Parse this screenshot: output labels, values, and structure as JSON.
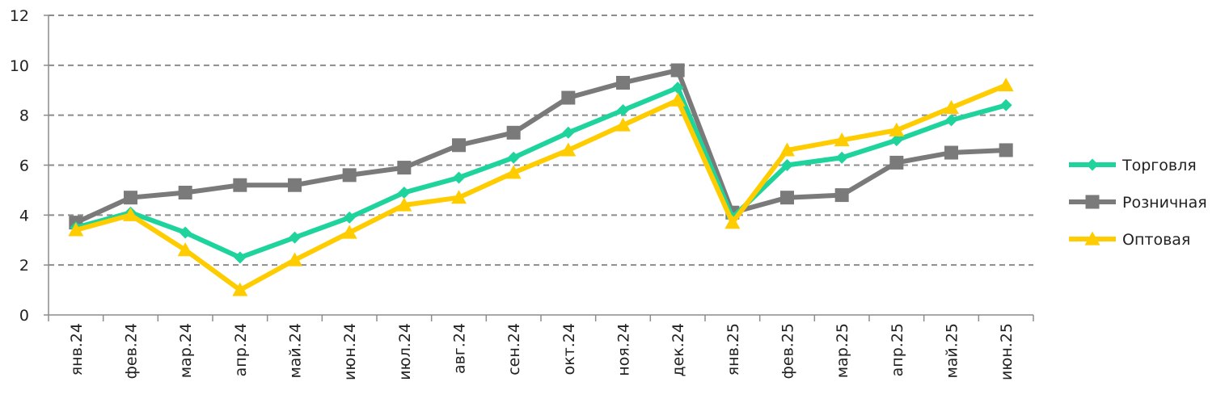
{
  "chart_data": {
    "type": "line",
    "title": "",
    "xlabel": "",
    "ylabel": "",
    "ylim": [
      0,
      12
    ],
    "yticks": [
      "0",
      "2",
      "4",
      "6",
      "8",
      "10",
      "12"
    ],
    "grid": true,
    "legend_position": "right",
    "categories": [
      "янв.24",
      "фев.24",
      "мар.24",
      "апр.24",
      "май.24",
      "июн.24",
      "июл.24",
      "авг.24",
      "сен.24",
      "окт.24",
      "ноя.24",
      "дек.24",
      "янв.25",
      "фев.25",
      "мар.25",
      "апр.25",
      "май.25",
      "июн.25"
    ],
    "series": [
      {
        "name": "Торговля",
        "color": "#1fd39c",
        "marker": "diamond",
        "values": [
          3.5,
          4.1,
          3.3,
          2.3,
          3.1,
          3.9,
          4.9,
          5.5,
          6.3,
          7.3,
          8.2,
          9.1,
          3.9,
          6.0,
          6.3,
          7.0,
          7.8,
          8.4
        ]
      },
      {
        "name": "Розничная",
        "color": "#7a7a7a",
        "marker": "square",
        "values": [
          3.7,
          4.7,
          4.9,
          5.2,
          5.2,
          5.6,
          5.9,
          6.8,
          7.3,
          8.7,
          9.3,
          9.8,
          4.1,
          4.7,
          4.8,
          6.1,
          6.5,
          6.6
        ]
      },
      {
        "name": "Оптовая",
        "color": "#ffcc00",
        "marker": "triangle",
        "values": [
          3.4,
          4.0,
          2.6,
          1.0,
          2.2,
          3.3,
          4.4,
          4.7,
          5.7,
          6.6,
          7.6,
          8.6,
          3.7,
          6.6,
          7.0,
          7.4,
          8.3,
          9.2
        ]
      }
    ]
  }
}
